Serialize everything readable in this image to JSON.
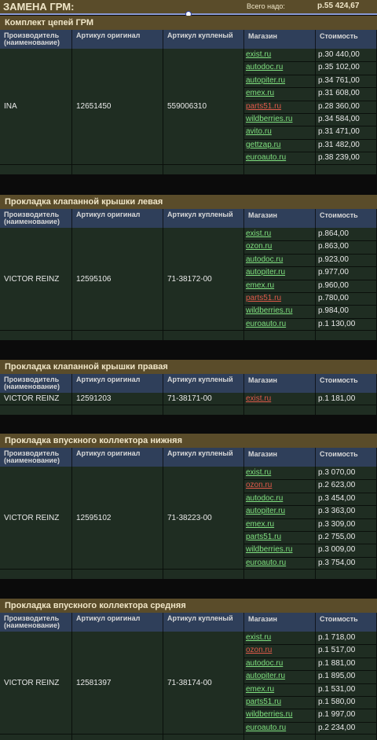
{
  "header": {
    "title": "ЗАМЕНА ГРМ:",
    "total_label": "Всего надо:",
    "total_value": "р.55 424,67"
  },
  "columns": {
    "manufacturer": "Производитель (наименование)",
    "article_orig": "Артикул оригинал",
    "article_bought": "Артикул купленый",
    "shop": "Магазин",
    "price": "Стоимость"
  },
  "sections": [
    {
      "title": "Комплект цепей ГРМ",
      "manufacturer": "INA",
      "article_orig": "12651450",
      "article_bought": "559006310",
      "offers": [
        {
          "shop": "exist.ru",
          "price": "р.30 440,00",
          "highlight": false
        },
        {
          "shop": "autodoc.ru",
          "price": "р.35 102,00",
          "highlight": false
        },
        {
          "shop": "autopiter.ru",
          "price": "р.34 761,00",
          "highlight": false
        },
        {
          "shop": "emex.ru",
          "price": "р.31 608,00",
          "highlight": false
        },
        {
          "shop": "parts51.ru",
          "price": "р.28 360,00",
          "highlight": true
        },
        {
          "shop": "wildberries.ru",
          "price": "р.34 584,00",
          "highlight": false
        },
        {
          "shop": "avito.ru",
          "price": "р.31 471,00",
          "highlight": false
        },
        {
          "shop": "gettzap.ru",
          "price": "р.31 482,00",
          "highlight": false
        },
        {
          "shop": "euroauto.ru",
          "price": "р.38 239,00",
          "highlight": false
        }
      ]
    },
    {
      "title": "Прокладка клапанной крышки левая",
      "manufacturer": "VICTOR REINZ",
      "article_orig": "12595106",
      "article_bought": "71-38172-00",
      "offers": [
        {
          "shop": "exist.ru",
          "price": "р.864,00",
          "highlight": false
        },
        {
          "shop": "ozon.ru",
          "price": "р.863,00",
          "highlight": false
        },
        {
          "shop": "autodoc.ru",
          "price": "р.923,00",
          "highlight": false
        },
        {
          "shop": "autopiter.ru",
          "price": "р.977,00",
          "highlight": false
        },
        {
          "shop": "emex.ru",
          "price": "р.960,00",
          "highlight": false
        },
        {
          "shop": "parts51.ru",
          "price": "р.780,00",
          "highlight": true
        },
        {
          "shop": "wildberries.ru",
          "price": "р.984,00",
          "highlight": false
        },
        {
          "shop": "euroauto.ru",
          "price": "р.1 130,00",
          "highlight": false
        }
      ]
    },
    {
      "title": "Прокладка клапанной крышки правая",
      "manufacturer": "VICTOR REINZ",
      "article_orig": "12591203",
      "article_bought": "71-38171-00",
      "offers": [
        {
          "shop": "exist.ru",
          "price": "р.1 181,00",
          "highlight": true
        }
      ]
    },
    {
      "title": "Прокладка впускного коллектора нижняя",
      "manufacturer": "VICTOR REINZ",
      "article_orig": "12595102",
      "article_bought": "71-38223-00",
      "offers": [
        {
          "shop": "exist.ru",
          "price": "р.3 070,00",
          "highlight": false
        },
        {
          "shop": "ozon.ru",
          "price": "р.2 623,00",
          "highlight": true
        },
        {
          "shop": "autodoc.ru",
          "price": "р.3 454,00",
          "highlight": false
        },
        {
          "shop": "autopiter.ru",
          "price": "р.3 363,00",
          "highlight": false
        },
        {
          "shop": "emex.ru",
          "price": "р.3 309,00",
          "highlight": false
        },
        {
          "shop": "parts51.ru",
          "price": "р.2 755,00",
          "highlight": false
        },
        {
          "shop": "wildberries.ru",
          "price": "р.3 009,00",
          "highlight": false
        },
        {
          "shop": "euroauto.ru",
          "price": "р.3 754,00",
          "highlight": false
        }
      ]
    },
    {
      "title": "Прокладка впускного коллектора средняя",
      "manufacturer": "VICTOR REINZ",
      "article_orig": "12581397",
      "article_bought": "71-38174-00",
      "offers": [
        {
          "shop": "exist.ru",
          "price": "р.1 718,00",
          "highlight": false
        },
        {
          "shop": "ozon.ru",
          "price": "р.1 517,00",
          "highlight": true
        },
        {
          "shop": "autodoc.ru",
          "price": "р.1 881,00",
          "highlight": false
        },
        {
          "shop": "autopiter.ru",
          "price": "р.1 895,00",
          "highlight": false
        },
        {
          "shop": "emex.ru",
          "price": "р.1 531,00",
          "highlight": false
        },
        {
          "shop": "parts51.ru",
          "price": "р.1 580,00",
          "highlight": false
        },
        {
          "shop": "wildberries.ru",
          "price": "р.1 997,00",
          "highlight": false
        },
        {
          "shop": "euroauto.ru",
          "price": "р.2 234,00",
          "highlight": false
        }
      ]
    }
  ],
  "colors": {
    "header_bg": "#5a4c2a",
    "col_header_bg": "#2f3f5a",
    "cell_bg": "#1f2d22",
    "link": "#7fe07f",
    "link_highlight": "#e05a4a"
  }
}
